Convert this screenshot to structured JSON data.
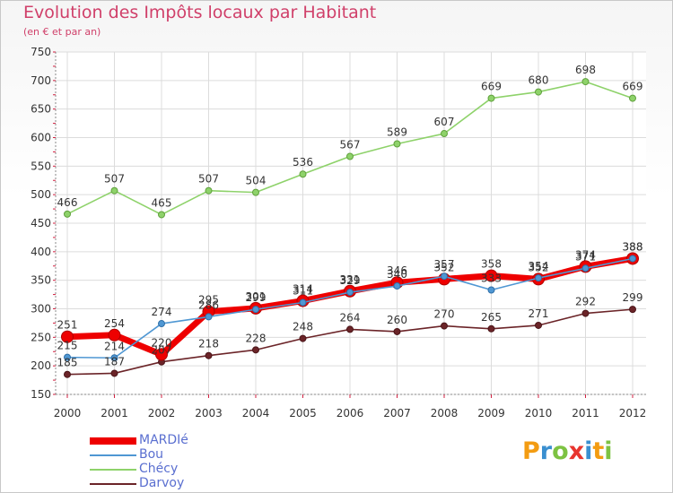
{
  "title": "Evolution des Impôts locaux par Habitant",
  "subtitle": "(en € et par an)",
  "logo": {
    "letters": [
      "P",
      "r",
      "o",
      "x",
      "i",
      "t",
      "i"
    ],
    "colors": [
      "#f39c12",
      "#3a8fd0",
      "#7dc242",
      "#e8352e",
      "#3a8fd0",
      "#f39c12",
      "#7dc242"
    ]
  },
  "chart_data": {
    "type": "line",
    "title": "Evolution des Impôts locaux par Habitant",
    "subtitle": "(en € et par an)",
    "x": [
      "2000",
      "2001",
      "2002",
      "2003",
      "2004",
      "2005",
      "2006",
      "2007",
      "2008",
      "2009",
      "2010",
      "2011",
      "2012"
    ],
    "ylim": [
      150,
      750
    ],
    "yticks": [
      150,
      200,
      250,
      300,
      350,
      400,
      450,
      500,
      550,
      600,
      650,
      700,
      750
    ],
    "grid": true,
    "legend_position": "bottom-left",
    "series": [
      {
        "name": "MARDIé",
        "color": "#ee0000",
        "values": [
          251,
          254,
          220,
          295,
          301,
          314,
          331,
          346,
          352,
          358,
          352,
          374,
          388
        ]
      },
      {
        "name": "Bou",
        "color": "#4f97d3",
        "values": [
          215,
          214,
          274,
          286,
          299,
          311,
          329,
          340,
          357,
          333,
          354,
          371,
          388
        ]
      },
      {
        "name": "Chécy",
        "color": "#8ed26a",
        "values": [
          466,
          507,
          465,
          507,
          504,
          536,
          567,
          589,
          607,
          669,
          680,
          698,
          669
        ]
      },
      {
        "name": "Darvoy",
        "color": "#6b2428",
        "values": [
          185,
          187,
          207,
          218,
          228,
          248,
          264,
          260,
          270,
          265,
          271,
          292,
          299
        ]
      }
    ]
  }
}
